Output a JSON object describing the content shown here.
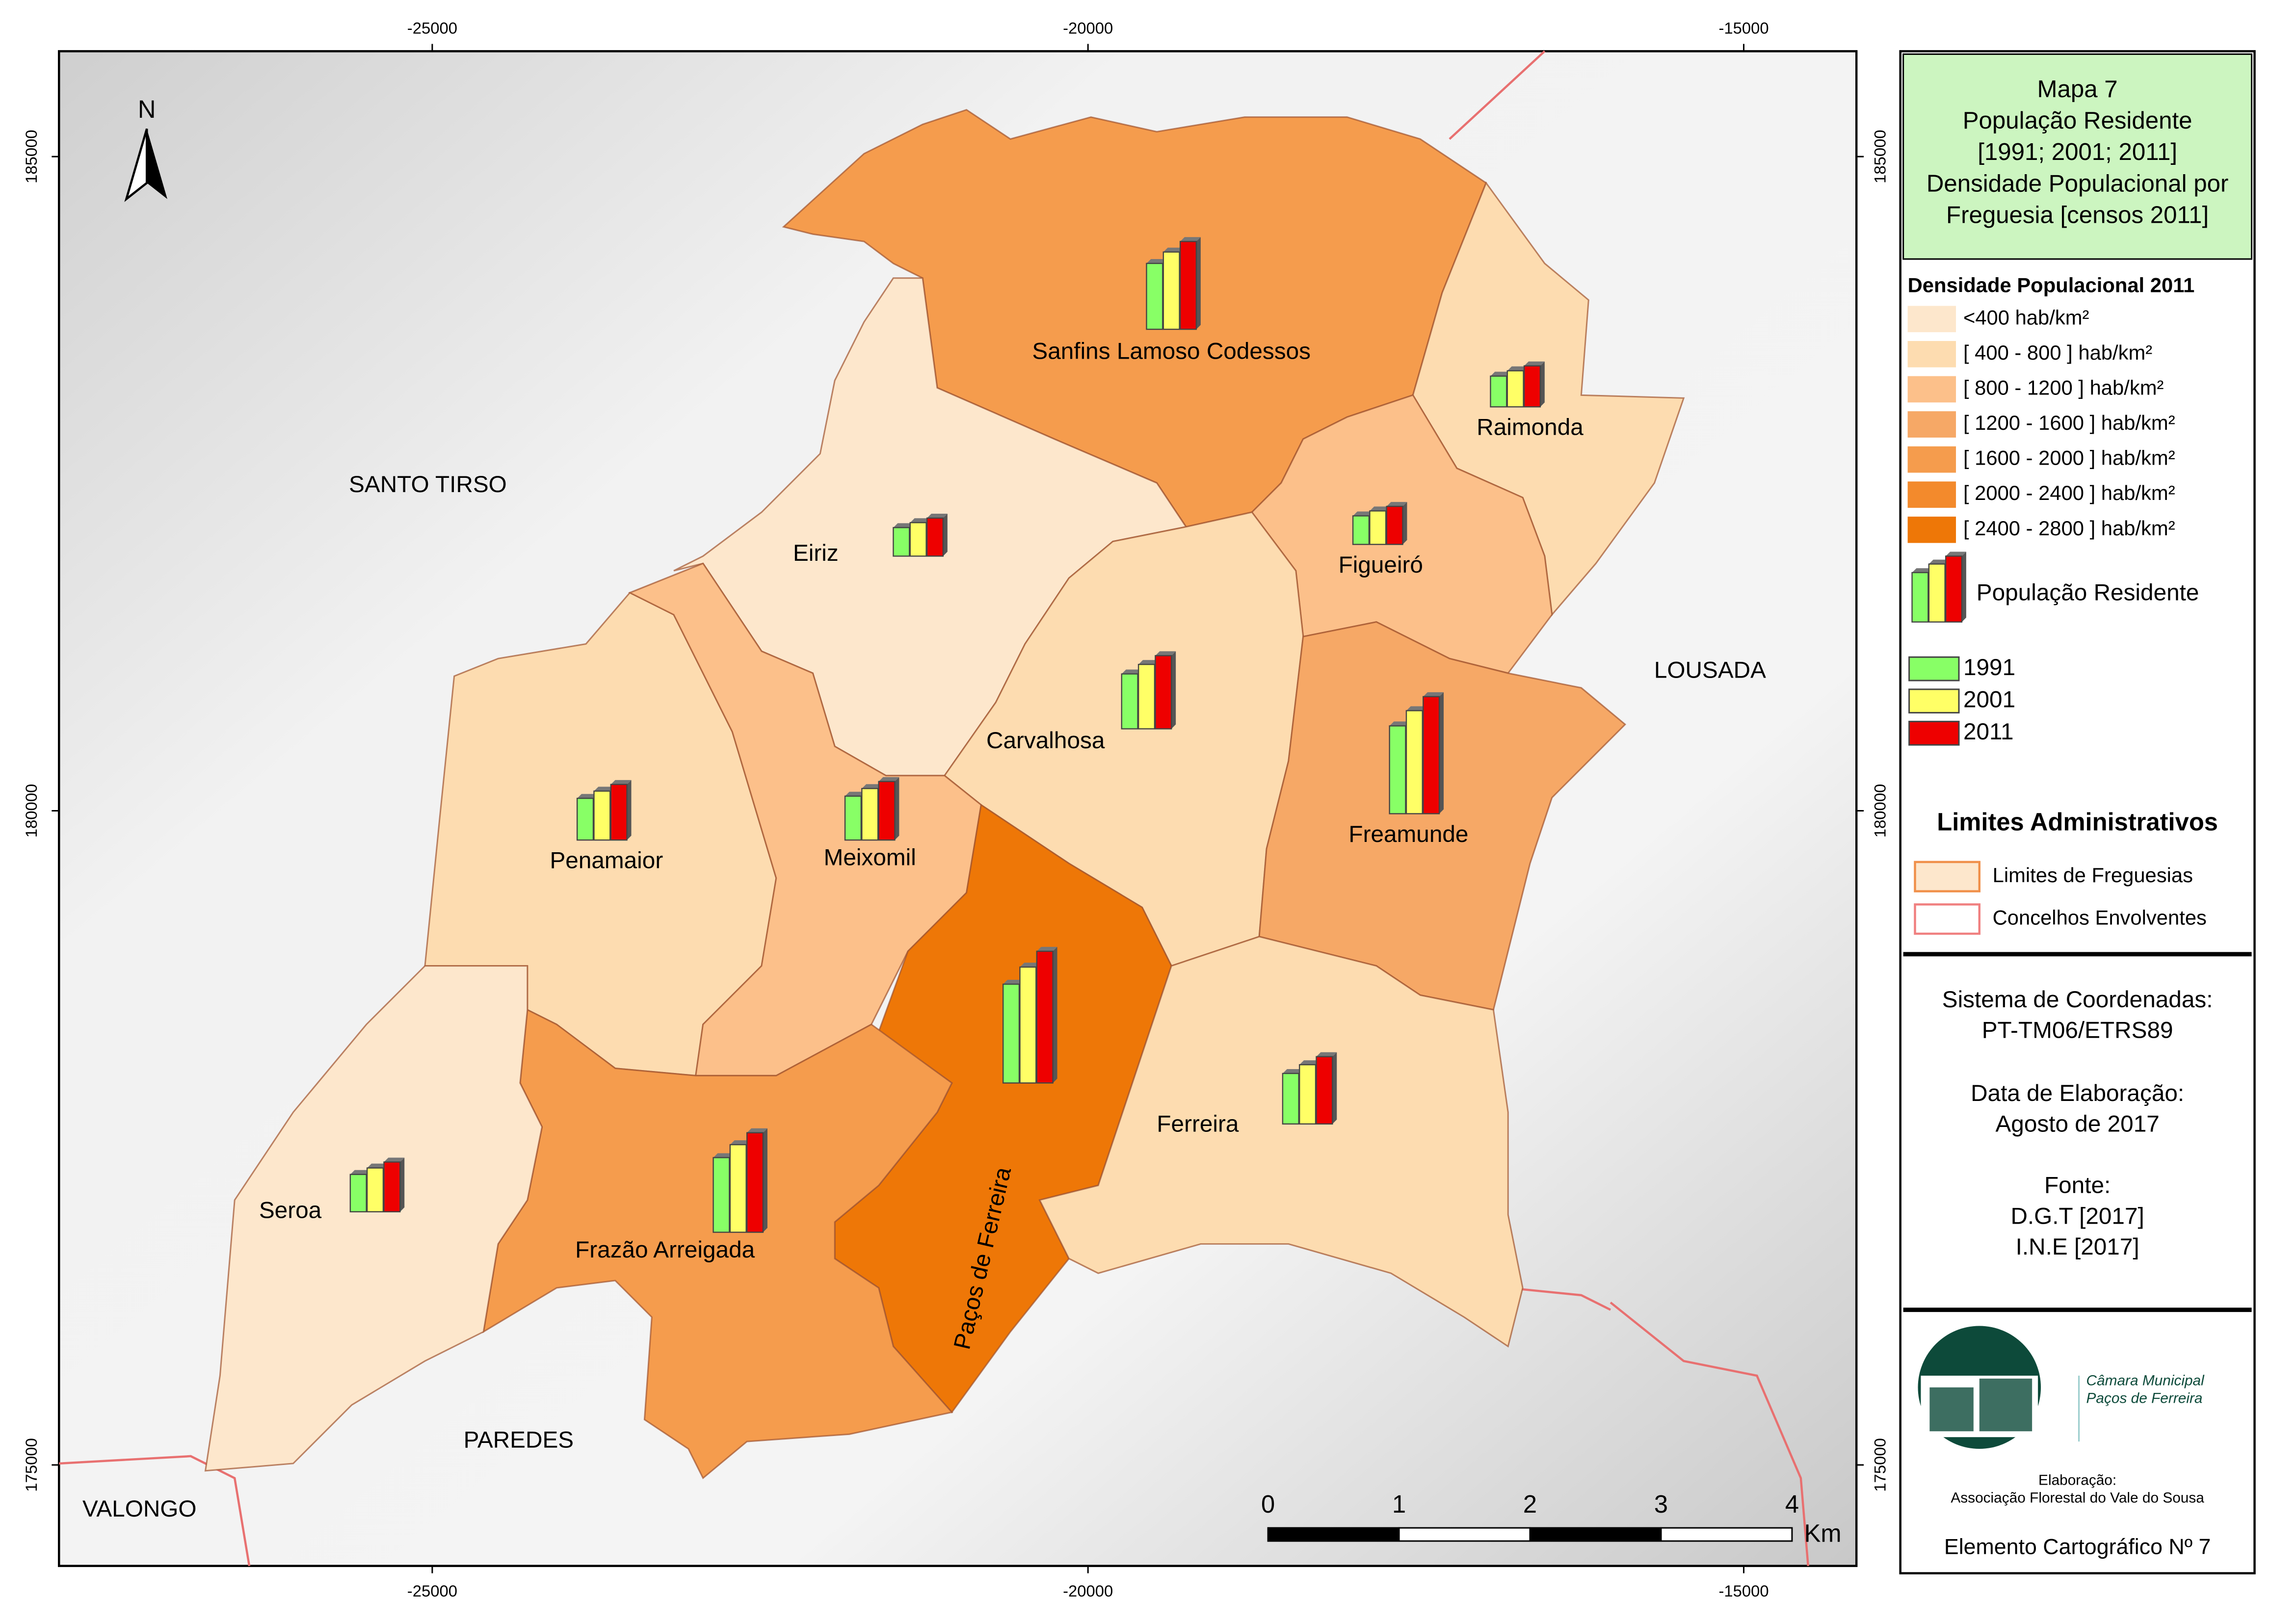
{
  "map_title": [
    "Mapa 7",
    "População Residente",
    "[1991; 2001; 2011]",
    "Densidade Populacional por",
    "Freguesia [censos 2011]"
  ],
  "x_ticks": [
    -25000,
    -20000,
    -15000
  ],
  "y_ticks": [
    185000,
    180000,
    175000
  ],
  "north": "N",
  "neighbors": [
    "SANTO TIRSO",
    "LOUSADA",
    "PAREDES",
    "VALONGO"
  ],
  "parishes": [
    {
      "name": "Sanfins Lamoso Codessos",
      "color": "#f59c4d"
    },
    {
      "name": "Raimonda",
      "color": "#fddcb0"
    },
    {
      "name": "Figueiró",
      "color": "#fcc08a"
    },
    {
      "name": "Eiriz",
      "color": "#fde7cc"
    },
    {
      "name": "Carvalhosa",
      "color": "#fddcb0"
    },
    {
      "name": "Freamunde",
      "color": "#f6a866"
    },
    {
      "name": "Penamaior",
      "color": "#fddcb0"
    },
    {
      "name": "Meixomil",
      "color": "#fcc08a"
    },
    {
      "name": "Paços de Ferreira",
      "color": "#ee7707"
    },
    {
      "name": "Ferreira",
      "color": "#fddcb0"
    },
    {
      "name": "Frazão Arreigada",
      "color": "#f59c4d"
    },
    {
      "name": "Seroa",
      "color": "#fde7cc"
    }
  ],
  "legend": {
    "density_title": "Densidade Populacional 2011",
    "classes": [
      {
        "label": "<400 hab/km²",
        "color": "#fde7cc"
      },
      {
        "label": "[ 400 - 800 ] hab/km²",
        "color": "#fddcb0"
      },
      {
        "label": "[ 800 - 1200 ] hab/km²",
        "color": "#fcc08a"
      },
      {
        "label": "[ 1200 - 1600 ] hab/km²",
        "color": "#f6a866"
      },
      {
        "label": "[ 1600 - 2000 ] hab/km²",
        "color": "#f59c4d"
      },
      {
        "label": "[ 2000 - 2400 ] hab/km²",
        "color": "#f38a2c"
      },
      {
        "label": "[ 2400 - 2800 ] hab/km²",
        "color": "#ee7707"
      }
    ],
    "population_title": "População Residente",
    "years": [
      {
        "label": "1991",
        "color": "#88ff66"
      },
      {
        "label": "2001",
        "color": "#ffff66"
      },
      {
        "label": "2011",
        "color": "#ee0000"
      }
    ],
    "limits_title": "Limites Administrativos",
    "limits": [
      {
        "label": "Limites de Freguesias",
        "color": "#f0904a"
      },
      {
        "label": "Concelhos Envolventes",
        "color": "#f08080"
      }
    ]
  },
  "info": {
    "crs_label": "Sistema de Coordenadas:",
    "crs": "PT-TM06/ETRS89",
    "date_label": "Data de Elaboração:",
    "date": "Agosto de 2017",
    "source_label": "Fonte:",
    "sources": [
      "D.G.T [2017]",
      "I.N.E [2017]"
    ]
  },
  "logo": {
    "line1": "Câmara Municipal",
    "line2": "Paços de Ferreira",
    "credit_label": "Elaboração:",
    "credit": "Associação Florestal do Vale do Sousa"
  },
  "footer": "Elemento Cartográfico Nº 7",
  "scale_bar": {
    "ticks": [
      0,
      1,
      2,
      3,
      4
    ],
    "unit": "Km"
  }
}
